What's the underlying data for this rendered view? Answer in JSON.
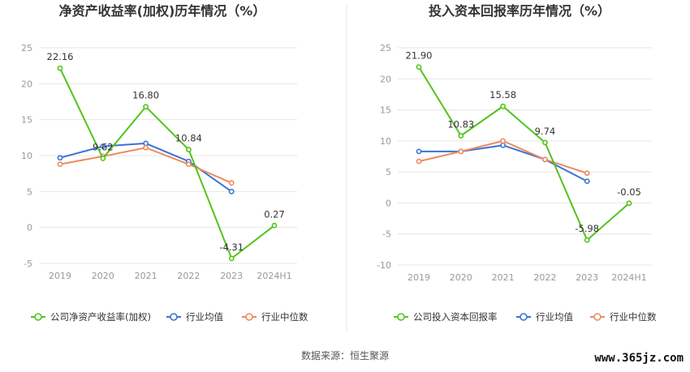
{
  "colors": {
    "company": "#52c41a",
    "industry_avg": "#3b72d6",
    "industry_median": "#ee8a5e",
    "grid": "#e6e6e6",
    "divider": "#e8e8e8"
  },
  "footer": {
    "source": "数据来源：恒生聚源",
    "watermark": "www.365jz.com"
  },
  "chart_data": [
    {
      "type": "line",
      "title": "净资产收益率(加权)历年情况（%）",
      "categories": [
        "2019",
        "2020",
        "2021",
        "2022",
        "2023",
        "2024H1"
      ],
      "yticks": [
        "-5",
        "0",
        "5",
        "10",
        "15",
        "20",
        "25"
      ],
      "ylim": [
        -5,
        25
      ],
      "grid": true,
      "legend_position": "bottom",
      "series": [
        {
          "name": "公司净资产收益率(加权)",
          "color_key": "company",
          "values": [
            22.16,
            9.62,
            16.8,
            10.84,
            -4.31,
            0.27
          ],
          "labels": [
            "22.16",
            "9.62",
            "16.80",
            "10.84",
            "-4.31",
            "0.27"
          ]
        },
        {
          "name": "行业均值",
          "color_key": "industry_avg",
          "values": [
            9.7,
            11.3,
            11.7,
            9.2,
            5.0,
            null
          ]
        },
        {
          "name": "行业中位数",
          "color_key": "industry_median",
          "values": [
            8.8,
            9.9,
            11.1,
            8.8,
            6.2,
            null
          ]
        }
      ]
    },
    {
      "type": "line",
      "title": "投入资本回报率历年情况（%）",
      "categories": [
        "2019",
        "2020",
        "2021",
        "2022",
        "2023",
        "2024H1"
      ],
      "yticks": [
        "-10",
        "-5",
        "0",
        "5",
        "10",
        "15",
        "20",
        "25"
      ],
      "ylim": [
        -10,
        25
      ],
      "grid": true,
      "legend_position": "bottom",
      "series": [
        {
          "name": "公司投入资本回报率",
          "color_key": "company",
          "values": [
            21.9,
            10.83,
            15.58,
            9.74,
            -5.98,
            -0.05
          ],
          "labels": [
            "21.90",
            "10.83",
            "15.58",
            "9.74",
            "-5.98",
            "-0.05"
          ]
        },
        {
          "name": "行业均值",
          "color_key": "industry_avg",
          "values": [
            8.3,
            8.3,
            9.3,
            7.0,
            3.5,
            null
          ]
        },
        {
          "name": "行业中位数",
          "color_key": "industry_median",
          "values": [
            6.7,
            8.3,
            10.0,
            7.0,
            4.8,
            null
          ]
        }
      ]
    }
  ]
}
